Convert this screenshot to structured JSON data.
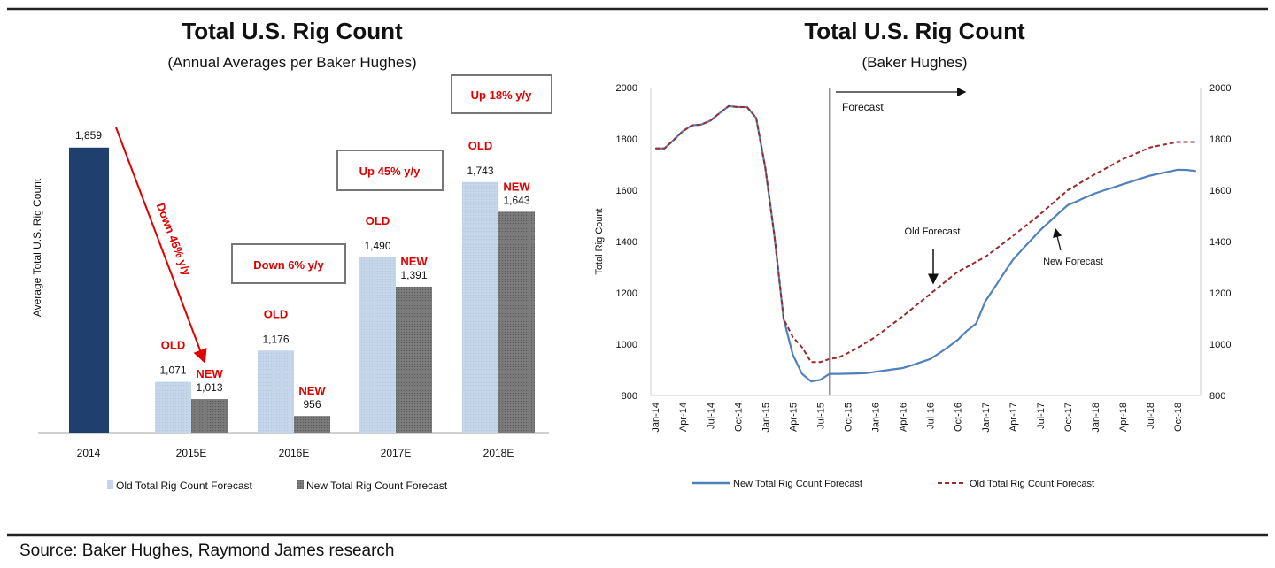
{
  "source": "Source: Baker Hughes, Raymond James research",
  "chart_data": [
    {
      "type": "bar",
      "title": "Total U.S. Rig Count",
      "subtitle": "(Annual Averages per Baker Hughes)",
      "ylabel": "Average Total U.S. Rig Count",
      "ylim": [
        900,
        2000
      ],
      "grid": false,
      "legend_position": "bottom",
      "categories": [
        "2014",
        "2015E",
        "2016E",
        "2017E",
        "2018E"
      ],
      "actual": {
        "category": "2014",
        "value": 1859,
        "label": "1,859",
        "color": "#1f3f6e"
      },
      "series": [
        {
          "name": "Old Total Rig Count Forecast",
          "tag": "OLD",
          "color": "#c5d5ea",
          "values": [
            null,
            1071,
            1176,
            1490,
            1743
          ],
          "labels": [
            "",
            "1,071",
            "1,176",
            "1,490",
            "1,743"
          ]
        },
        {
          "name": "New Total Rig Count Forecast",
          "tag": "NEW",
          "color": "#7a7a7a",
          "values": [
            null,
            1013,
            956,
            1391,
            1643
          ],
          "labels": [
            "",
            "1,013",
            "956",
            "1,391",
            "1,643"
          ]
        }
      ],
      "annotations": [
        "Down 45% y/y",
        "Down 6% y/y",
        "Up 45% y/y",
        "Up 18% y/y"
      ],
      "annotation_color": "#e00000"
    },
    {
      "type": "line",
      "title": "Total U.S. Rig Count",
      "subtitle": "(Baker Hughes)",
      "ylabel": "Total Rig Count",
      "ylim": [
        800,
        2000
      ],
      "yticks": [
        800,
        1000,
        1200,
        1400,
        1600,
        1800,
        2000
      ],
      "secondary_yticks": [
        800,
        1000,
        1200,
        1400,
        1600,
        1800,
        2000
      ],
      "grid": false,
      "legend_position": "bottom",
      "x_start": "Jan-14",
      "x_end": "Dec-18",
      "x_tick_labels": [
        "Jan-14",
        "Apr-14",
        "Jul-14",
        "Oct-14",
        "Jan-15",
        "Apr-15",
        "Jul-15",
        "Oct-15",
        "Jan-16",
        "Apr-16",
        "Jul-16",
        "Oct-16",
        "Jan-17",
        "Apr-17",
        "Jul-17",
        "Oct-17",
        "Jan-18",
        "Apr-18",
        "Jul-18",
        "Oct-18"
      ],
      "forecast_start": "Aug-15",
      "forecast_label": "Forecast",
      "annotations": {
        "old": "Old Forecast",
        "new": "New Forecast"
      },
      "series": [
        {
          "name": "New Total Rig Count Forecast",
          "color": "#4f81bd",
          "style": "solid",
          "values": [
            1763,
            1763,
            1796,
            1830,
            1853,
            1856,
            1871,
            1900,
            1928,
            1924,
            1924,
            1882,
            1686,
            1421,
            1098,
            959,
            884,
            855,
            861,
            884,
            884,
            885,
            886,
            887,
            892,
            897,
            902,
            907,
            918,
            930,
            942,
            965,
            990,
            1017,
            1052,
            1080,
            1167,
            1220,
            1275,
            1328,
            1368,
            1406,
            1444,
            1477,
            1510,
            1542,
            1557,
            1573,
            1588,
            1600,
            1611,
            1623,
            1634,
            1646,
            1657,
            1665,
            1672,
            1680,
            1679,
            1675
          ]
        },
        {
          "name": "Old Total Rig Count Forecast",
          "color": "#9b2a2a",
          "style": "dashed",
          "values": [
            1763,
            1763,
            1796,
            1830,
            1853,
            1856,
            1871,
            1900,
            1928,
            1924,
            1924,
            1882,
            1686,
            1421,
            1098,
            1028,
            988,
            930,
            930,
            942,
            948,
            965,
            985,
            1006,
            1028,
            1055,
            1082,
            1109,
            1138,
            1167,
            1196,
            1225,
            1254,
            1282,
            1301,
            1321,
            1340,
            1367,
            1394,
            1421,
            1450,
            1478,
            1507,
            1538,
            1569,
            1600,
            1621,
            1642,
            1663,
            1682,
            1702,
            1721,
            1736,
            1752,
            1767,
            1774,
            1781,
            1788,
            1788,
            1788
          ]
        }
      ]
    }
  ]
}
